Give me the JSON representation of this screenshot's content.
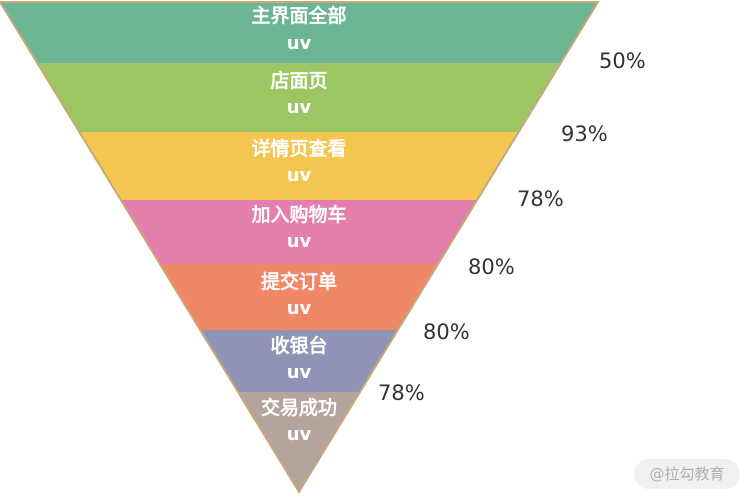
{
  "funnel": {
    "stages": [
      {
        "label": "主界面全部",
        "sub": "uv",
        "color": "#6cb592"
      },
      {
        "label": "店面页",
        "sub": "uv",
        "color": "#9bc663"
      },
      {
        "label": "详情页查看",
        "sub": "uv",
        "color": "#f3c652"
      },
      {
        "label": "加入购物车",
        "sub": "uv",
        "color": "#e47fab"
      },
      {
        "label": "提交订单",
        "sub": "uv",
        "color": "#f08766"
      },
      {
        "label": "收银台",
        "sub": "uv",
        "color": "#8f94b6"
      },
      {
        "label": "交易成功",
        "sub": "uv",
        "color": "#b5a39e"
      }
    ],
    "conversion_rates": [
      "50%",
      "93%",
      "78%",
      "80%",
      "80%",
      "78%"
    ],
    "outline_color": "#c9a77a"
  },
  "watermark": "@拉勾教育"
}
